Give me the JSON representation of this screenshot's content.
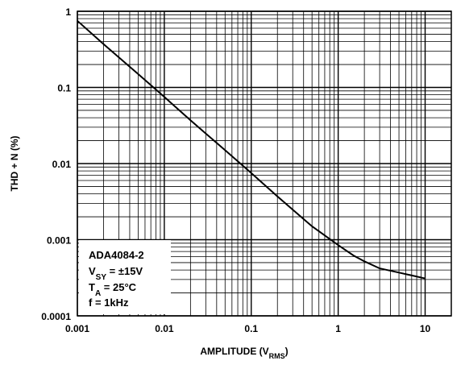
{
  "chart_data": {
    "type": "line",
    "xlabel": "AMPLITUDE (V",
    "xlabel_sub": "RMS",
    "xlabel_close": ")",
    "ylabel": "THD + N (%)",
    "x_scale": "log",
    "y_scale": "log",
    "xlim": [
      0.001,
      20
    ],
    "ylim": [
      0.0001,
      1
    ],
    "grid": true,
    "x_ticks": [
      "0.001",
      "0.01",
      "0.1",
      "1",
      "10"
    ],
    "y_ticks": [
      "1",
      "0.1",
      "0.01",
      "0.001",
      "0.0001"
    ],
    "series": [
      {
        "x": [
          0.001,
          0.002,
          0.005,
          0.01,
          0.02,
          0.05,
          0.1,
          0.2,
          0.5,
          1,
          1.5,
          2,
          3,
          5,
          10
        ],
        "y": [
          0.75,
          0.37,
          0.15,
          0.075,
          0.037,
          0.015,
          0.0075,
          0.0037,
          0.0015,
          0.00085,
          0.00062,
          0.00052,
          0.00042,
          0.00037,
          0.00031
        ]
      }
    ],
    "annotation": {
      "line1": "ADA4084-2",
      "line2_main": "V",
      "line2_sub": "SY",
      "line2_rest": " = ±15V",
      "line3_main": "T",
      "line3_sub": "A",
      "line3_rest": " = 25°C",
      "line4": "f = 1kHz"
    },
    "colors": {
      "line": "#000000",
      "grid": "#000000",
      "background": "#ffffff"
    }
  }
}
